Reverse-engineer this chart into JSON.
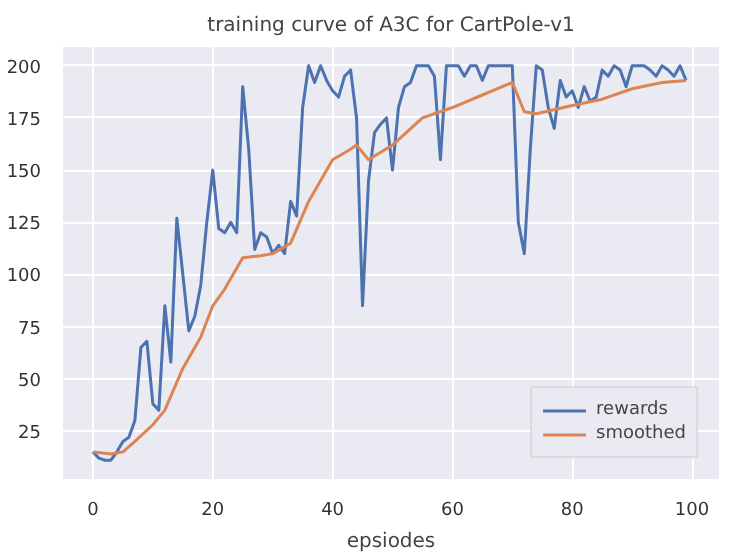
{
  "chart_data": {
    "type": "line",
    "title": "training curve of A3C for CartPole-v1",
    "xlabel": "epsiodes",
    "xlim": [
      -5,
      104.5
    ],
    "ylim": [
      2,
      209
    ],
    "xticks": [
      0,
      20,
      40,
      60,
      80,
      100
    ],
    "yticks": [
      25,
      50,
      75,
      100,
      125,
      150,
      175,
      200
    ],
    "grid": true,
    "legend": "bottom right",
    "line_style": "solid",
    "marker": "none",
    "series": [
      {
        "name": "rewards",
        "color": "#4c72b0",
        "x": [
          0,
          1,
          2,
          3,
          4,
          5,
          6,
          7,
          8,
          9,
          10,
          11,
          12,
          13,
          14,
          15,
          16,
          17,
          18,
          19,
          20,
          21,
          22,
          23,
          24,
          25,
          26,
          27,
          28,
          29,
          30,
          31,
          32,
          33,
          34,
          35,
          36,
          37,
          38,
          39,
          40,
          41,
          42,
          43,
          44,
          45,
          46,
          47,
          48,
          49,
          50,
          51,
          52,
          53,
          54,
          55,
          56,
          57,
          58,
          59,
          60,
          61,
          62,
          63,
          64,
          65,
          66,
          67,
          68,
          69,
          70,
          71,
          72,
          73,
          74,
          75,
          76,
          77,
          78,
          79,
          80,
          81,
          82,
          83,
          84,
          85,
          86,
          87,
          88,
          89,
          90,
          91,
          92,
          93,
          94,
          95,
          96,
          97,
          98,
          99
        ],
        "values": [
          15,
          12,
          11,
          11,
          15,
          20,
          22,
          30,
          65,
          68,
          38,
          35,
          85,
          58,
          127,
          100,
          73,
          80,
          95,
          125,
          150,
          122,
          120,
          125,
          120,
          190,
          160,
          112,
          120,
          118,
          110,
          114,
          110,
          135,
          128,
          180,
          200,
          192,
          200,
          193,
          188,
          185,
          195,
          198,
          175,
          85,
          145,
          168,
          172,
          175,
          150,
          180,
          190,
          192,
          200,
          200,
          200,
          195,
          155,
          200,
          200,
          200,
          195,
          200,
          200,
          193,
          200,
          200,
          200,
          200,
          200,
          125,
          110,
          160,
          200,
          198,
          180,
          170,
          193,
          185,
          188,
          180,
          190,
          183,
          185,
          198,
          195,
          200,
          198,
          190,
          200,
          200,
          200,
          198,
          195,
          200,
          198,
          195,
          200,
          193
        ]
      },
      {
        "name": "smoothed",
        "color": "#dd8452",
        "x": [
          0,
          3,
          5,
          7,
          10,
          12,
          15,
          18,
          20,
          22,
          25,
          28,
          30,
          33,
          36,
          40,
          43,
          44,
          46,
          50,
          55,
          60,
          65,
          70,
          72,
          74,
          80,
          85,
          90,
          95,
          99
        ],
        "values": [
          15,
          14,
          15,
          20,
          28,
          35,
          55,
          70,
          85,
          93,
          108,
          109,
          110,
          115,
          135,
          155,
          160,
          162,
          155,
          162,
          175,
          180,
          186,
          192,
          178,
          177,
          181,
          184,
          189,
          192,
          193
        ]
      }
    ]
  }
}
